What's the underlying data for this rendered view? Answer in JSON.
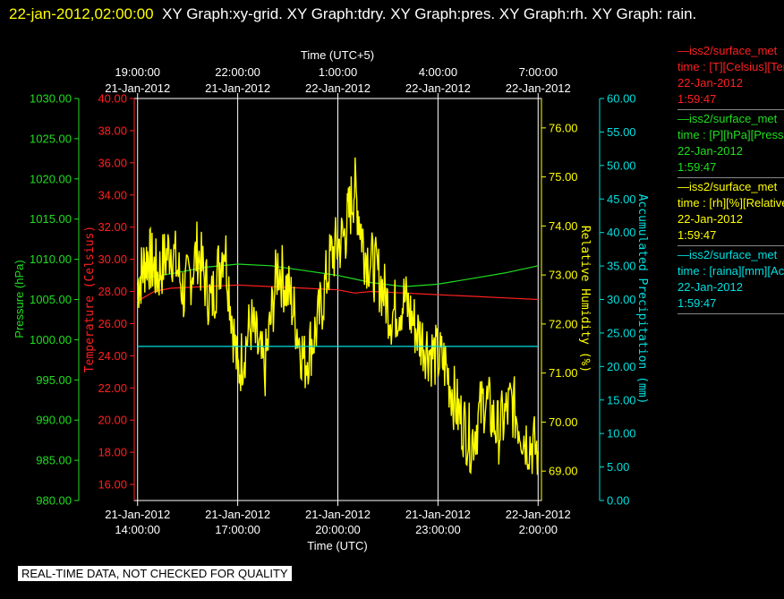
{
  "header": {
    "timestamp": "22-jan-2012,02:00:00",
    "titles": "XY Graph:xy-grid.  XY Graph:tdry.  XY Graph:pres.  XY Graph:rh.  XY Graph: rain."
  },
  "banner": "REAL-TIME DATA, NOT CHECKED FOR QUALITY",
  "colors": {
    "tdry": "#ff2020",
    "pres": "#20dd20",
    "rh": "#ffff00",
    "rain": "#00e0e0",
    "grid": "#ffffff"
  },
  "legend": [
    {
      "name": "—iss2/surface_met",
      "field": "time : [T][Celsius][Temp]",
      "date": "22-Jan-2012",
      "time": "1:59:47",
      "color": "#ff2020"
    },
    {
      "name": "—iss2/surface_met",
      "field": "time : [P][hPa][Pressure]",
      "date": "22-Jan-2012",
      "time": "1:59:47",
      "color": "#20dd20"
    },
    {
      "name": "—iss2/surface_met",
      "field": "time : [rh][%][Relative]",
      "date": "22-Jan-2012",
      "time": "1:59:47",
      "color": "#ffff00"
    },
    {
      "name": "—iss2/surface_met",
      "field": "time : [raina][mm][Accum]",
      "date": "22-Jan-2012",
      "time": "1:59:47",
      "color": "#00e0e0"
    }
  ],
  "chart_data": {
    "type": "line",
    "x_range_hours": [
      13.9,
      26.1
    ],
    "bottom_axis": {
      "label": "Time (UTC)",
      "ticks": [
        {
          "hour": 14,
          "date": "21-Jan-2012",
          "time": "14:00:00"
        },
        {
          "hour": 17,
          "date": "21-Jan-2012",
          "time": "17:00:00"
        },
        {
          "hour": 20,
          "date": "21-Jan-2012",
          "time": "20:00:00"
        },
        {
          "hour": 23,
          "date": "21-Jan-2012",
          "time": "23:00:00"
        },
        {
          "hour": 26,
          "date": "22-Jan-2012",
          "time": "2:00:00"
        }
      ]
    },
    "top_axis": {
      "label": "Time (UTC+5)",
      "ticks": [
        {
          "hour": 14,
          "date": "21-Jan-2012",
          "time": "19:00:00"
        },
        {
          "hour": 17,
          "date": "21-Jan-2012",
          "time": "22:00:00"
        },
        {
          "hour": 20,
          "date": "22-Jan-2012",
          "time": "1:00:00"
        },
        {
          "hour": 23,
          "date": "22-Jan-2012",
          "time": "4:00:00"
        },
        {
          "hour": 26,
          "date": "22-Jan-2012",
          "time": "7:00:00"
        }
      ]
    },
    "axes": {
      "pressure": {
        "label": "Pressure (hPa)",
        "range": [
          980,
          1030
        ],
        "ticks": [
          "980.00",
          "985.00",
          "990.00",
          "995.00",
          "1000.00",
          "1005.00",
          "1010.00",
          "1015.00",
          "1020.00",
          "1025.00",
          "1030.00"
        ]
      },
      "temperature": {
        "label": "Temperature (Celsius)",
        "range": [
          15,
          40
        ],
        "ticks": [
          "16.00",
          "18.00",
          "20.00",
          "22.00",
          "24.00",
          "26.00",
          "28.00",
          "30.00",
          "32.00",
          "34.00",
          "36.00",
          "38.00",
          "40.00"
        ]
      },
      "rh": {
        "label": "Relative Humidity (%)",
        "range": [
          68.4,
          76.6
        ],
        "ticks": [
          "69.00",
          "70.00",
          "71.00",
          "72.00",
          "73.00",
          "74.00",
          "75.00",
          "76.00"
        ]
      },
      "precip": {
        "label": "Accumulated Precipitation (mm)",
        "range": [
          0,
          60
        ],
        "ticks": [
          "0.00",
          "5.00",
          "10.00",
          "15.00",
          "20.00",
          "25.00",
          "30.00",
          "35.00",
          "40.00",
          "45.00",
          "50.00",
          "55.00",
          "60.00"
        ]
      }
    },
    "grid": "vertical",
    "series": [
      {
        "name": "tdry",
        "axis": "temperature",
        "x": [
          14.0,
          14.5,
          15.0,
          16.0,
          17.0,
          18.0,
          19.0,
          20.0,
          20.5,
          21.0,
          22.0,
          23.0,
          24.0,
          25.0,
          26.0
        ],
        "y": [
          27.4,
          28.0,
          28.2,
          28.3,
          28.4,
          28.3,
          28.2,
          28.1,
          27.9,
          28.0,
          27.9,
          27.8,
          27.7,
          27.6,
          27.5
        ]
      },
      {
        "name": "pres",
        "axis": "pressure",
        "x": [
          14.0,
          15.0,
          16.0,
          17.0,
          18.0,
          19.0,
          20.0,
          21.0,
          22.0,
          23.0,
          24.0,
          25.0,
          26.0
        ],
        "y": [
          1007.6,
          1008.2,
          1009.0,
          1009.4,
          1009.2,
          1008.6,
          1008.0,
          1007.1,
          1006.6,
          1006.9,
          1007.6,
          1008.3,
          1009.2
        ]
      },
      {
        "name": "rh",
        "axis": "rh",
        "x": [
          14.0,
          14.3,
          14.6,
          15.0,
          15.4,
          15.8,
          16.2,
          16.6,
          17.0,
          17.4,
          17.8,
          18.2,
          18.6,
          19.0,
          19.4,
          19.8,
          20.2,
          20.5,
          20.8,
          21.2,
          21.6,
          22.0,
          22.4,
          22.8,
          23.2,
          23.6,
          24.0,
          24.4,
          24.8,
          25.2,
          25.6,
          26.0
        ],
        "y": [
          72.8,
          73.4,
          73.0,
          73.6,
          72.6,
          73.5,
          72.4,
          73.7,
          71.0,
          72.0,
          71.0,
          73.2,
          72.5,
          71.2,
          72.0,
          73.4,
          73.8,
          74.8,
          73.5,
          73.0,
          72.2,
          72.5,
          71.8,
          71.4,
          71.2,
          70.2,
          69.6,
          70.5,
          69.8,
          70.4,
          69.7,
          69.4
        ]
      },
      {
        "name": "rain",
        "axis": "precip",
        "x": [
          14.0,
          26.0
        ],
        "y": [
          23.0,
          23.0
        ]
      }
    ]
  }
}
